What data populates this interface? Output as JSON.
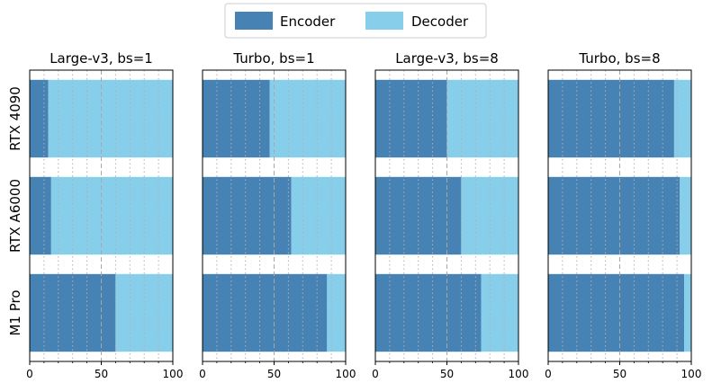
{
  "chart_data": {
    "type": "bar",
    "orientation": "horizontal",
    "stacked": true,
    "legend": {
      "position": "top-center",
      "entries": [
        {
          "label": "Encoder",
          "color": "#4682b4"
        },
        {
          "label": "Decoder",
          "color": "#87ceeb"
        }
      ]
    },
    "categories": [
      "RTX 4090",
      "RTX A6000",
      "M1 Pro"
    ],
    "xlim": [
      0,
      100
    ],
    "xticks": [
      "0",
      "50",
      "100"
    ],
    "grid": "vertical dotted minor, dashed at 50",
    "panels": [
      {
        "title": "Large-v3, bs=1",
        "encoder": [
          13,
          15,
          60
        ],
        "decoder": [
          87,
          85,
          40
        ]
      },
      {
        "title": "Turbo, bs=1",
        "encoder": [
          47,
          62,
          87
        ],
        "decoder": [
          53,
          38,
          13
        ]
      },
      {
        "title": "Large-v3, bs=8",
        "encoder": [
          50,
          60,
          74
        ],
        "decoder": [
          50,
          40,
          26
        ]
      },
      {
        "title": "Turbo, bs=8",
        "encoder": [
          88,
          92,
          95
        ],
        "decoder": [
          12,
          8,
          5
        ]
      }
    ]
  }
}
